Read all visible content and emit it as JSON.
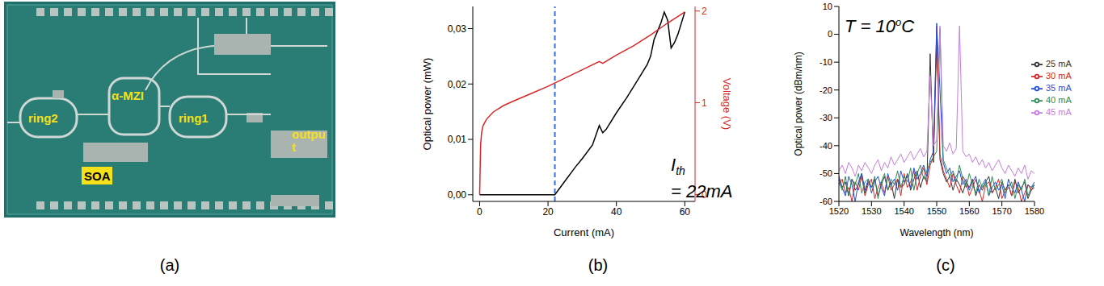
{
  "image": {
    "caption": "(a)",
    "labels": [
      "ring2",
      "α-MZI",
      "ring1",
      "outpu",
      "t",
      "SOA"
    ]
  },
  "chart_data": [
    {
      "type": "line",
      "caption": "(b)",
      "x_label": "Current (mA)",
      "y_label": "Optical power (mW)",
      "y2_label": "Voltage (V)",
      "xlim": [
        -2,
        63
      ],
      "xticks": [
        0,
        20,
        40,
        60
      ],
      "ylim": [
        -0.0012,
        0.034
      ],
      "yticks": [
        {
          "value": 0,
          "label": "0,00"
        },
        {
          "value": 0.01,
          "label": "0,01"
        },
        {
          "value": 0.02,
          "label": "0,02"
        },
        {
          "value": 0.03,
          "label": "0,03"
        }
      ],
      "y2lim": [
        -0.075,
        2.05
      ],
      "y2ticks": [
        0,
        1,
        2
      ],
      "annotation": {
        "x": 22,
        "text": "I",
        "subscript": "th",
        "text2": "= 22mA",
        "line_style": "dashed",
        "color": "#3b6fd6"
      },
      "series": [
        {
          "color": "#000000",
          "x": [
            0,
            5,
            10,
            15,
            20,
            22,
            25,
            28,
            30,
            33,
            35,
            36,
            37,
            40,
            43,
            46,
            49,
            50,
            51,
            52,
            53,
            54,
            55,
            56,
            57,
            58,
            60
          ],
          "values": [
            0,
            0,
            0,
            0,
            0,
            0,
            0.0025,
            0.005,
            0.0065,
            0.009,
            0.0125,
            0.0112,
            0.0118,
            0.0148,
            0.0175,
            0.0205,
            0.0235,
            0.025,
            0.028,
            0.0295,
            0.031,
            0.033,
            0.0315,
            0.0265,
            0.0275,
            0.029,
            0.033
          ]
        },
        {
          "color": "#d62728",
          "axis": "y2",
          "x": [
            0,
            0.3,
            0.6,
            1,
            2,
            4,
            7,
            10,
            15,
            20,
            25,
            30,
            35,
            36,
            40,
            45,
            50,
            55,
            60
          ],
          "values": [
            0,
            0.55,
            0.68,
            0.75,
            0.82,
            0.9,
            0.97,
            1.02,
            1.1,
            1.18,
            1.27,
            1.36,
            1.45,
            1.43,
            1.52,
            1.62,
            1.74,
            1.87,
            1.99
          ]
        }
      ]
    },
    {
      "type": "line",
      "caption": "(c)",
      "x_label": "Wavelength (nm)",
      "y_label": "Optical power (dBm/nm)",
      "xlim": [
        1520,
        1580
      ],
      "xticks": [
        1520,
        1530,
        1540,
        1550,
        1560,
        1570,
        1580
      ],
      "ylim": [
        -60,
        10
      ],
      "yticks": [
        -60,
        -50,
        -40,
        -30,
        -20,
        -10,
        0,
        10
      ],
      "annotation": {
        "text": "T = 10",
        "superscript": "o",
        "text2": "C"
      },
      "legend": "right",
      "x": [
        1520,
        1521,
        1522,
        1523,
        1524,
        1525,
        1526,
        1527,
        1528,
        1529,
        1530,
        1531,
        1532,
        1533,
        1534,
        1535,
        1536,
        1537,
        1538,
        1539,
        1540,
        1541,
        1542,
        1543,
        1544,
        1545,
        1546,
        1547,
        1548,
        1549,
        1550,
        1551,
        1552,
        1553,
        1554,
        1555,
        1556,
        1557,
        1558,
        1559,
        1560,
        1561,
        1562,
        1563,
        1564,
        1565,
        1566,
        1567,
        1568,
        1569,
        1570,
        1571,
        1572,
        1573,
        1574,
        1575,
        1576,
        1577,
        1578,
        1579,
        1580
      ],
      "series": [
        {
          "name": "25 mA",
          "color": "#333333",
          "values": [
            -51,
            -55,
            -53,
            -58,
            -52,
            -56,
            -54,
            -50,
            -57,
            -53,
            -55,
            -52,
            -58,
            -54,
            -51,
            -56,
            -53,
            -59,
            -52,
            -55,
            -54,
            -50,
            -56,
            -52,
            -49,
            -55,
            -51,
            -53,
            -7,
            -46,
            -2,
            -45,
            -50,
            -53,
            -51,
            -56,
            -52,
            -54,
            -57,
            -53,
            -55,
            -52,
            -58,
            -54,
            -56,
            -53,
            -51,
            -57,
            -55,
            -59,
            -53,
            -56,
            -54,
            -58,
            -52,
            -57,
            -55,
            -53,
            -59,
            -56,
            -54
          ]
        },
        {
          "name": "30 mA",
          "color": "#d62728",
          "values": [
            -54,
            -52,
            -57,
            -55,
            -60,
            -53,
            -56,
            -51,
            -58,
            -54,
            -52,
            -59,
            -55,
            -53,
            -57,
            -51,
            -56,
            -54,
            -52,
            -58,
            -50,
            -55,
            -53,
            -49,
            -56,
            -51,
            -48,
            -54,
            -47,
            -44,
            3,
            -43,
            -49,
            -52,
            -55,
            -50,
            -54,
            -57,
            -51,
            -53,
            -58,
            -55,
            -52,
            -56,
            -60,
            -54,
            -53,
            -57,
            -55,
            -52,
            -59,
            -56,
            -54,
            -58,
            -53,
            -55,
            -60,
            -57,
            -54,
            -56,
            -55
          ]
        },
        {
          "name": "35 mA",
          "color": "#1f4fd8",
          "values": [
            -52,
            -55,
            -58,
            -51,
            -54,
            -60,
            -53,
            -50,
            -56,
            -52,
            -57,
            -53,
            -51,
            -55,
            -58,
            -50,
            -54,
            -52,
            -56,
            -49,
            -53,
            -51,
            -55,
            -48,
            -52,
            -50,
            -47,
            -51,
            -45,
            -42,
            4,
            -20,
            -46,
            -50,
            -48,
            -53,
            -51,
            -49,
            -54,
            -52,
            -56,
            -53,
            -51,
            -57,
            -54,
            -52,
            -58,
            -55,
            -53,
            -56,
            -54,
            -59,
            -52,
            -55,
            -57,
            -53,
            -56,
            -60,
            -54,
            -55,
            -53
          ]
        },
        {
          "name": "40 mA",
          "color": "#2e8b57",
          "values": [
            -53,
            -56,
            -51,
            -58,
            -52,
            -54,
            -50,
            -57,
            -53,
            -52,
            -55,
            -51,
            -59,
            -53,
            -50,
            -56,
            -52,
            -54,
            -49,
            -55,
            -51,
            -53,
            -48,
            -56,
            -50,
            -47,
            -52,
            -49,
            -46,
            -44,
            -42,
            2,
            -45,
            -48,
            -51,
            -49,
            -53,
            -47,
            -52,
            -55,
            -50,
            -54,
            -57,
            -52,
            -55,
            -53,
            -58,
            -51,
            -56,
            -54,
            -52,
            -57,
            -55,
            -53,
            -59,
            -54,
            -56,
            -52,
            -58,
            -55,
            -54
          ]
        },
        {
          "name": "45 mA",
          "color": "#c77dde",
          "values": [
            -49,
            -47,
            -50,
            -46,
            -48,
            -51,
            -47,
            -49,
            -46,
            -48,
            -50,
            -47,
            -45,
            -49,
            -46,
            -48,
            -44,
            -47,
            -45,
            -43,
            -46,
            -44,
            -42,
            -45,
            -43,
            -41,
            -44,
            -42,
            -15,
            -40,
            -38,
            3,
            -40,
            -42,
            -39,
            -43,
            -41,
            3,
            -42,
            -44,
            -43,
            -46,
            -44,
            -47,
            -45,
            -48,
            -46,
            -49,
            -47,
            -45,
            -48,
            -50,
            -47,
            -49,
            -51,
            -48,
            -50,
            -47,
            -52,
            -49,
            -50
          ]
        }
      ]
    }
  ]
}
